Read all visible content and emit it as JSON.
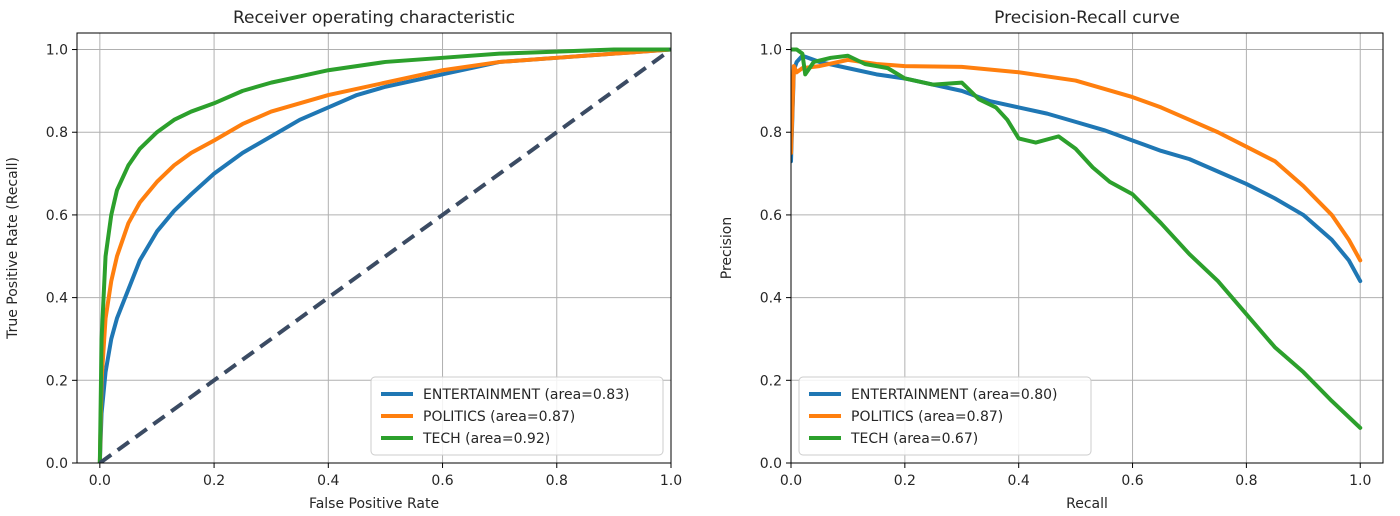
{
  "chart_data": [
    {
      "type": "line",
      "title": "Receiver operating characteristic",
      "xlabel": "False Positive Rate",
      "ylabel": "True Positive Rate (Recall)",
      "xlim": [
        -0.04,
        1.0
      ],
      "ylim": [
        0.0,
        1.04
      ],
      "xticks": [
        "0.0",
        "0.2",
        "0.4",
        "0.6",
        "0.8",
        "1.0"
      ],
      "yticks": [
        "0.0",
        "0.2",
        "0.4",
        "0.6",
        "0.8",
        "1.0"
      ],
      "grid": true,
      "legend_position": "lower-right",
      "series": [
        {
          "name": "ENTERTAINMENT (area=0.83)",
          "color": "#1f77b4",
          "x": [
            0,
            0.003,
            0.01,
            0.02,
            0.03,
            0.05,
            0.07,
            0.1,
            0.13,
            0.16,
            0.2,
            0.25,
            0.3,
            0.35,
            0.4,
            0.45,
            0.5,
            0.6,
            0.7,
            0.8,
            0.9,
            1.0
          ],
          "y": [
            0,
            0.12,
            0.22,
            0.3,
            0.35,
            0.42,
            0.49,
            0.56,
            0.61,
            0.65,
            0.7,
            0.75,
            0.79,
            0.83,
            0.86,
            0.89,
            0.91,
            0.94,
            0.97,
            0.98,
            0.99,
            1.0
          ]
        },
        {
          "name": "POLITICS (area=0.87)",
          "color": "#ff7f0e",
          "x": [
            0,
            0.003,
            0.01,
            0.02,
            0.03,
            0.05,
            0.07,
            0.1,
            0.13,
            0.16,
            0.2,
            0.25,
            0.3,
            0.35,
            0.4,
            0.5,
            0.6,
            0.7,
            0.8,
            0.9,
            1.0
          ],
          "y": [
            0,
            0.2,
            0.35,
            0.44,
            0.5,
            0.58,
            0.63,
            0.68,
            0.72,
            0.75,
            0.78,
            0.82,
            0.85,
            0.87,
            0.89,
            0.92,
            0.95,
            0.97,
            0.98,
            0.99,
            1.0
          ]
        },
        {
          "name": "TECH (area=0.92)",
          "color": "#2ca02c",
          "x": [
            0,
            0.003,
            0.01,
            0.02,
            0.03,
            0.05,
            0.07,
            0.1,
            0.13,
            0.16,
            0.2,
            0.25,
            0.3,
            0.35,
            0.4,
            0.5,
            0.6,
            0.7,
            0.8,
            0.9,
            1.0
          ],
          "y": [
            0,
            0.3,
            0.5,
            0.6,
            0.66,
            0.72,
            0.76,
            0.8,
            0.83,
            0.85,
            0.87,
            0.9,
            0.92,
            0.935,
            0.95,
            0.97,
            0.98,
            0.99,
            0.995,
            1.0,
            1.0
          ]
        },
        {
          "name": "",
          "color": "#3b4b63",
          "dashed": true,
          "x": [
            0,
            1.0
          ],
          "y": [
            0,
            1.0
          ]
        }
      ]
    },
    {
      "type": "line",
      "title": "Precision-Recall curve",
      "xlabel": "Recall",
      "ylabel": "Precision",
      "xlim": [
        0.0,
        1.04
      ],
      "ylim": [
        0.0,
        1.04
      ],
      "xticks": [
        "0.0",
        "0.2",
        "0.4",
        "0.6",
        "0.8",
        "1.0"
      ],
      "yticks": [
        "0.0",
        "0.2",
        "0.4",
        "0.6",
        "0.8",
        "1.0"
      ],
      "grid": true,
      "legend_position": "lower-left",
      "series": [
        {
          "name": "ENTERTAINMENT (area=0.80)",
          "color": "#1f77b4",
          "x": [
            0.0,
            0.005,
            0.01,
            0.02,
            0.05,
            0.1,
            0.15,
            0.2,
            0.25,
            0.3,
            0.35,
            0.4,
            0.45,
            0.5,
            0.55,
            0.6,
            0.65,
            0.7,
            0.75,
            0.8,
            0.85,
            0.9,
            0.95,
            0.98,
            1.0
          ],
          "y": [
            0.73,
            0.95,
            0.97,
            0.985,
            0.97,
            0.955,
            0.94,
            0.93,
            0.915,
            0.9,
            0.875,
            0.86,
            0.845,
            0.825,
            0.805,
            0.78,
            0.755,
            0.735,
            0.705,
            0.675,
            0.64,
            0.6,
            0.54,
            0.49,
            0.44
          ]
        },
        {
          "name": "POLITICS (area=0.87)",
          "color": "#ff7f0e",
          "x": [
            0.0,
            0.005,
            0.01,
            0.02,
            0.05,
            0.1,
            0.15,
            0.2,
            0.3,
            0.4,
            0.5,
            0.55,
            0.6,
            0.65,
            0.7,
            0.75,
            0.8,
            0.85,
            0.9,
            0.95,
            0.98,
            1.0
          ],
          "y": [
            0.75,
            0.96,
            0.945,
            0.955,
            0.96,
            0.975,
            0.965,
            0.96,
            0.958,
            0.945,
            0.925,
            0.905,
            0.885,
            0.86,
            0.83,
            0.8,
            0.765,
            0.73,
            0.67,
            0.6,
            0.54,
            0.49
          ]
        },
        {
          "name": "TECH (area=0.67)",
          "color": "#2ca02c",
          "x": [
            0.0,
            0.005,
            0.01,
            0.02,
            0.025,
            0.04,
            0.07,
            0.1,
            0.13,
            0.17,
            0.2,
            0.25,
            0.3,
            0.33,
            0.36,
            0.38,
            0.4,
            0.43,
            0.47,
            0.5,
            0.53,
            0.56,
            0.6,
            0.65,
            0.7,
            0.75,
            0.8,
            0.85,
            0.9,
            0.95,
            1.0
          ],
          "y": [
            1.0,
            1.0,
            1.0,
            0.99,
            0.94,
            0.97,
            0.98,
            0.985,
            0.965,
            0.955,
            0.93,
            0.915,
            0.92,
            0.88,
            0.86,
            0.83,
            0.785,
            0.775,
            0.79,
            0.76,
            0.715,
            0.68,
            0.65,
            0.58,
            0.505,
            0.44,
            0.36,
            0.28,
            0.22,
            0.15,
            0.085
          ]
        }
      ]
    }
  ]
}
